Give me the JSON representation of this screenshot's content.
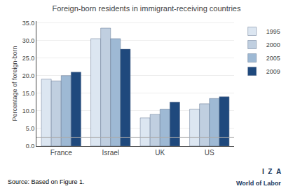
{
  "chart_data": {
    "type": "bar",
    "title": "Foreign-born residents in immigrant-receiving countries",
    "y_label": "Percentage of foreign-born",
    "categories": [
      "France",
      "Israel",
      "UK",
      "US"
    ],
    "series": [
      {
        "name": "1995",
        "color": "#dce6f1",
        "values": [
          19.0,
          30.5,
          8.0,
          10.5
        ]
      },
      {
        "name": "2000",
        "color": "#c0cfe0",
        "values": [
          18.5,
          33.5,
          9.0,
          12.0
        ]
      },
      {
        "name": "2005",
        "color": "#9eb9d4",
        "values": [
          20.0,
          30.5,
          10.5,
          13.5
        ]
      },
      {
        "name": "2009",
        "color": "#1f497d",
        "values": [
          21.0,
          27.5,
          12.5,
          14.0
        ]
      }
    ],
    "ylim": [
      0,
      35.5
    ],
    "yticks": [
      {
        "value": 0.0,
        "label": "0.0"
      },
      {
        "value": 5.0,
        "label": "5.0"
      },
      {
        "value": 10.0,
        "label": "10.0"
      },
      {
        "value": 15.0,
        "label": "15.0"
      },
      {
        "value": 20.0,
        "label": "20.0"
      },
      {
        "value": 25.0,
        "label": "25.0"
      },
      {
        "value": 30.0,
        "label": "30.0"
      },
      {
        "value": 35.0,
        "label": "35.0"
      }
    ],
    "hline": 2.5,
    "grid": true,
    "legend": "upper right",
    "annotations": [
      "Source: Based on Figure 1.",
      "I  Z  A",
      "World of Labor"
    ]
  }
}
